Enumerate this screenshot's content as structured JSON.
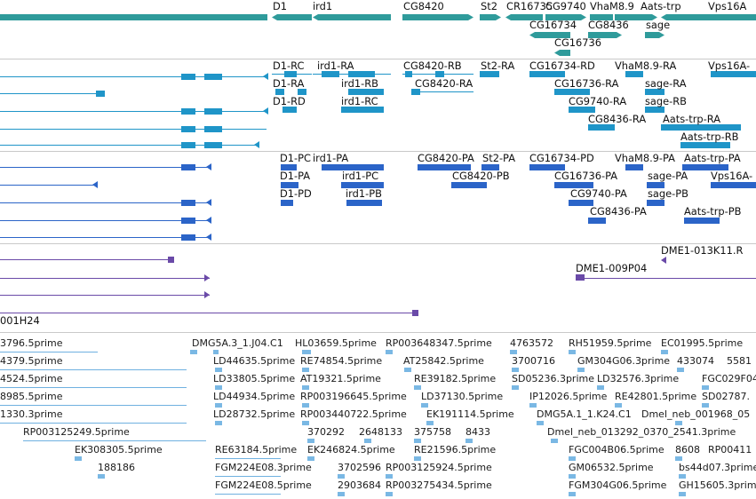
{
  "colors": {
    "gene": "#2f9b9b",
    "transcript": "#1f95c8",
    "cds": "#2b64c8",
    "clone": "#6a4aa8",
    "est": "#6fb1e0",
    "divider": "#c9c9c9"
  },
  "tracks": {
    "genes": {
      "labels": [
        {
          "id": "g-d1",
          "text": "D1"
        },
        {
          "id": "g-ird1",
          "text": "ird1"
        },
        {
          "id": "g-cg8420",
          "text": "CG8420"
        },
        {
          "id": "g-st2",
          "text": "St2"
        },
        {
          "id": "g-cr16735",
          "text": "CR16735"
        },
        {
          "id": "g-cg9740",
          "text": "CG9740"
        },
        {
          "id": "g-vham89",
          "text": "VhaM8.9"
        },
        {
          "id": "g-aatstrp",
          "text": "Aats-trp"
        },
        {
          "id": "g-vps16a",
          "text": "Vps16A"
        },
        {
          "id": "g-cg16734",
          "text": "CG16734"
        },
        {
          "id": "g-cg8436",
          "text": "CG8436"
        },
        {
          "id": "g-sage",
          "text": "sage"
        },
        {
          "id": "g-cg16736",
          "text": "CG16736"
        }
      ]
    },
    "transcripts": {
      "labels": [
        "D1-RC",
        "ird1-RA",
        "CG8420-RB",
        "St2-RA",
        "CG16734-RD",
        "VhaM8.9-RA",
        "Vps16A-",
        "D1-RA",
        "ird1-RB",
        "CG8420-RA",
        "CG16736-RA",
        "sage-RA",
        "D1-RD",
        "ird1-RC",
        "CG9740-RA",
        "sage-RB",
        "CG8436-RA",
        "Aats-trp-RA",
        "Aats-trp-RB"
      ]
    },
    "proteins": {
      "labels": [
        "D1-PC",
        "ird1-PA",
        "CG8420-PA",
        "St2-PA",
        "CG16734-PD",
        "VhaM8.9-PA",
        "Aats-trp-PA",
        "D1-PA",
        "ird1-PC",
        "CG8420-PB",
        "CG16736-PA",
        "sage-PA",
        "Vps16A-",
        "D1-PD",
        "ird1-PB",
        "CG9740-PA",
        "sage-PB",
        "CG8436-PA",
        "Aats-trp-PB"
      ]
    },
    "clones": {
      "labels": [
        "DME1-013K11.R",
        "DME1-009P04",
        "001H24"
      ]
    },
    "ests": {
      "labels": [
        "3796.5prime",
        "DMG5A.3_1.J04.C1",
        "HL03659.5prime",
        "RP003648347.5prime",
        "4763572",
        "RH51959.5prime",
        "EC01995.5prime",
        "4379.5prime",
        "LD44635.5prime",
        "RE74854.5prime",
        "AT25842.5prime",
        "3700716",
        "GM304G06.3prime",
        "433074",
        "5581",
        "4524.5prime",
        "LD33805.5prime",
        "AT19321.5prime",
        "RE39182.5prime",
        "SD05236.3prime",
        "LD32576.3prime",
        "FGC029F04.5",
        "8985.5prime",
        "LD44934.5prime",
        "RP003196645.5prime",
        "LD37130.5prime",
        "IP12026.5prime",
        "RE42801.5prime",
        "SD02787.",
        "1330.3prime",
        "LD28732.5prime",
        "RP003440722.5prime",
        "EK191114.5prime",
        "DMG5A.1_1.K24.C1",
        "Dmel_neb_001968_05",
        "RP003125249.5prime",
        "370292",
        "2648133",
        "375758",
        "8433",
        "Dmel_neb_013292_0370_2541.3prime",
        "EK308305.5prime",
        "RE63184.5prime",
        "EK246824.5prime",
        "RE21596.5prime",
        "FGC004B06.5prime",
        "8608",
        "RP00411",
        "188186",
        "FGM224E08.3prime",
        "3702596",
        "RP003125924.5prime",
        "GM06532.5prime",
        "bs44d07.3prime",
        "FGM224E08.5prime",
        "2903684",
        "RP003275434.5prime",
        "FGM304G06.5prime",
        "GH15605.3prime"
      ]
    }
  }
}
